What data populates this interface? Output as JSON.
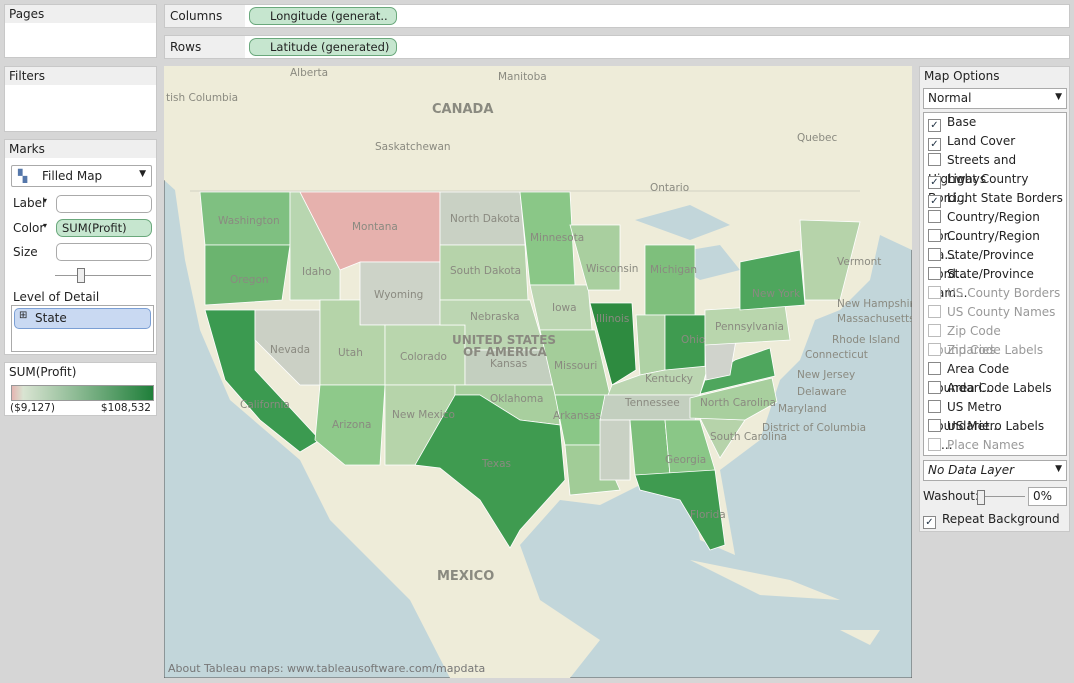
{
  "pages": {
    "title": "Pages"
  },
  "filters": {
    "title": "Filters"
  },
  "shelves": {
    "columns": {
      "label": "Columns",
      "pill": "Longitude (generat.."
    },
    "rows": {
      "label": "Rows",
      "pill": "Latitude (generated)"
    }
  },
  "marks": {
    "title": "Marks",
    "mark_type": "Filled Map",
    "label": "Label",
    "color": "Color",
    "color_pill": "SUM(Profit)",
    "size": "Size",
    "level_of_detail": "Level of Detail",
    "detail_pill": "State"
  },
  "legend": {
    "title": "SUM(Profit)",
    "min_label": "($9,127)",
    "max_label": "$108,532"
  },
  "map": {
    "labels": [
      "Alberta",
      "Manitoba",
      "CANADA",
      "tish Columbia",
      "Saskatchewan",
      "Quebec",
      "Ontario",
      "Washington",
      "Oregon",
      "Montana",
      "North Dakota",
      "Minnesota",
      "Idaho",
      "South Dakota",
      "Wisconsin",
      "Wyoming",
      "Michigan",
      "New York",
      "Vermont",
      "New Hampshire",
      "Massachusetts",
      "Nebraska",
      "Iowa",
      "Nevada",
      "Utah",
      "Colorado",
      "UNITED STATES",
      "OF AMERICA",
      "Kansas",
      "Illinois",
      "Ohio",
      "Missouri",
      "Pennsylvania",
      "Rhode Island",
      "Connecticut",
      "California",
      "Kentucky",
      "New Jersey",
      "Delaware",
      "Maryland",
      "District of Columbia",
      "Oklahoma",
      "Arkansas",
      "Tennessee",
      "North Carolina",
      "Arizona",
      "New Mexico",
      "South Carolina",
      "Texas",
      "Georgia",
      "Florida",
      "MEXICO"
    ],
    "footer": "About Tableau maps: www.tableausoftware.com/mapdata"
  },
  "map_options": {
    "title": "Map Options",
    "style": "Normal",
    "layers": [
      {
        "label": "Base",
        "checked": true,
        "enabled": true
      },
      {
        "label": "Land Cover",
        "checked": true,
        "enabled": true
      },
      {
        "label": "Streets and Highways",
        "checked": false,
        "enabled": true
      },
      {
        "label": "Light Country Bord...",
        "checked": true,
        "enabled": true
      },
      {
        "label": "Light State Borders ...",
        "checked": true,
        "enabled": true
      },
      {
        "label": "Country/Region Bor...",
        "checked": false,
        "enabled": true
      },
      {
        "label": "Country/Region Na...",
        "checked": false,
        "enabled": true
      },
      {
        "label": "State/Province Bord...",
        "checked": false,
        "enabled": true
      },
      {
        "label": "State/Province Nam...",
        "checked": false,
        "enabled": true
      },
      {
        "label": "US County Borders",
        "checked": false,
        "enabled": false
      },
      {
        "label": "US County Names",
        "checked": false,
        "enabled": false
      },
      {
        "label": "Zip Code Boundaries",
        "checked": false,
        "enabled": false
      },
      {
        "label": "Zip Code Labels",
        "checked": false,
        "enabled": false
      },
      {
        "label": "Area Code Boundari...",
        "checked": false,
        "enabled": true
      },
      {
        "label": "Area Code Labels",
        "checked": false,
        "enabled": true
      },
      {
        "label": "US Metro Boundarie...",
        "checked": false,
        "enabled": true
      },
      {
        "label": "US Metro Labels (C...",
        "checked": false,
        "enabled": true
      },
      {
        "label": "Place Names",
        "checked": false,
        "enabled": false
      }
    ],
    "data_layer": "No Data Layer",
    "washout_label": "Washout:",
    "washout_value": "0%",
    "repeat_background": {
      "label": "Repeat Background",
      "checked": true
    }
  }
}
